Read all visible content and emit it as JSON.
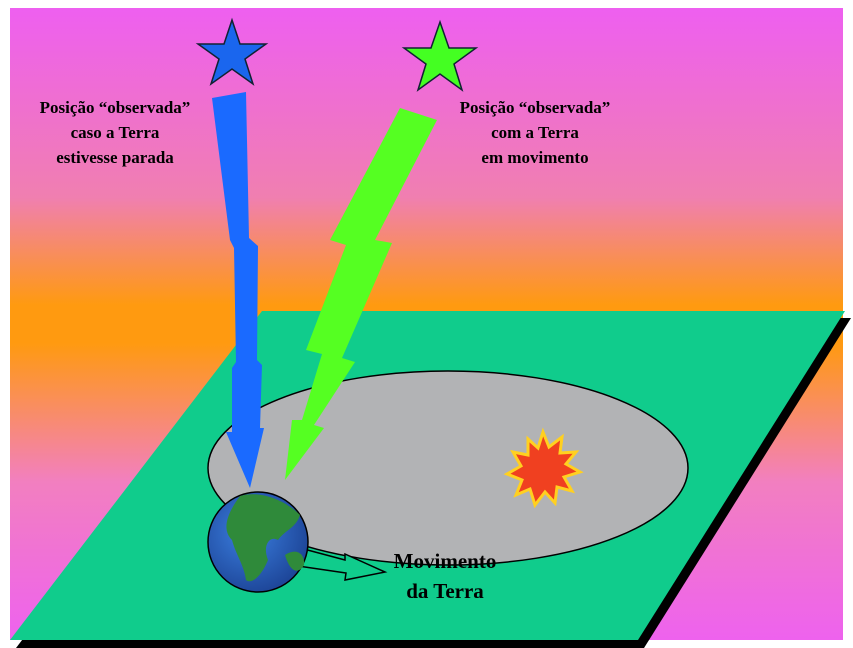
{
  "left_label": {
    "lines": [
      "Posição “observada”",
      "caso a Terra",
      "estivesse parada"
    ]
  },
  "right_label": {
    "lines": [
      "Posição “observada”",
      "com a Terra",
      "em movimento"
    ]
  },
  "motion_label": {
    "lines": [
      "Movimento",
      "da Terra"
    ]
  }
}
